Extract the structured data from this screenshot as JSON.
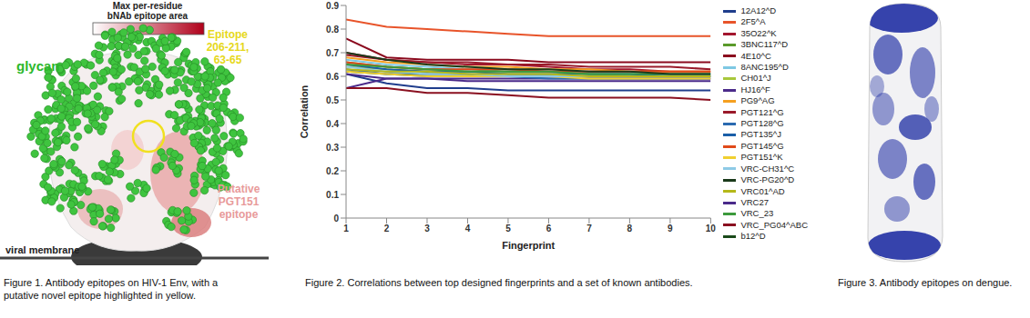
{
  "figure_1": {
    "colorbar_title": [
      "Max per-residue",
      "bNAb epitope area"
    ],
    "glycan_label": "glycan",
    "epitope_label": [
      "Epitope",
      "206-211,",
      "63-65"
    ],
    "putative_label": [
      "Putative",
      "PGT151",
      "epitope"
    ],
    "membrane_label": "viral membrane",
    "caption": [
      "Figure 1. Antibody epitopes on HIV-1 Env, with a",
      "putative novel epitope highlighted in yellow."
    ]
  },
  "chart_data": {
    "type": "line",
    "x_label": "Fingerprint",
    "y_label": "Correlation",
    "x": [
      1,
      2,
      3,
      4,
      5,
      6,
      7,
      8,
      9,
      10
    ],
    "xlim": [
      1,
      10
    ],
    "xticks": [
      1,
      2,
      3,
      4,
      5,
      6,
      7,
      8,
      9,
      10
    ],
    "ylim": [
      0,
      0.9
    ],
    "yticks": [
      0,
      0.1,
      0.2,
      0.3,
      0.4,
      0.5,
      0.6,
      0.7,
      0.8,
      0.9
    ],
    "grid": false,
    "legend": "right",
    "series": [
      {
        "name": "12A12^D",
        "color": "#1f3d8c",
        "values": [
          0.61,
          0.57,
          0.55,
          0.55,
          0.54,
          0.54,
          0.54,
          0.54,
          0.54,
          0.54
        ]
      },
      {
        "name": "2F5^A",
        "color": "#e8542a",
        "values": [
          0.84,
          0.81,
          0.8,
          0.79,
          0.78,
          0.77,
          0.77,
          0.77,
          0.77,
          0.77
        ]
      },
      {
        "name": "35O22^K",
        "color": "#a3162e",
        "values": [
          0.7,
          0.67,
          0.66,
          0.65,
          0.65,
          0.64,
          0.63,
          0.63,
          0.62,
          0.62
        ]
      },
      {
        "name": "3BNC117^D",
        "color": "#5a9a2a",
        "values": [
          0.66,
          0.64,
          0.63,
          0.63,
          0.62,
          0.62,
          0.61,
          0.61,
          0.61,
          0.61
        ]
      },
      {
        "name": "4E10^C",
        "color": "#8b0a1e",
        "values": [
          0.76,
          0.68,
          0.67,
          0.67,
          0.67,
          0.66,
          0.66,
          0.66,
          0.66,
          0.66
        ]
      },
      {
        "name": "8ANC195^D",
        "color": "#7ec8e3",
        "values": [
          0.67,
          0.65,
          0.64,
          0.63,
          0.63,
          0.62,
          0.62,
          0.61,
          0.61,
          0.61
        ]
      },
      {
        "name": "b12^D",
        "color": "#1a4a1a",
        "values": [
          0.62,
          0.61,
          0.61,
          0.61,
          0.6,
          0.6,
          0.6,
          0.6,
          0.6,
          0.6
        ]
      },
      {
        "name": "CH01^J",
        "color": "#a8c83c",
        "values": [
          0.64,
          0.63,
          0.62,
          0.62,
          0.61,
          0.61,
          0.61,
          0.6,
          0.6,
          0.6
        ]
      },
      {
        "name": "HJ16^F",
        "color": "#4b2a8a",
        "values": [
          0.55,
          0.59,
          0.59,
          0.59,
          0.59,
          0.59,
          0.59,
          0.59,
          0.59,
          0.59
        ]
      },
      {
        "name": "PG9^AG",
        "color": "#f5a020",
        "values": [
          0.68,
          0.66,
          0.65,
          0.64,
          0.64,
          0.63,
          0.63,
          0.62,
          0.62,
          0.62
        ]
      },
      {
        "name": "PGT121^G",
        "color": "#9a1a2a",
        "values": [
          0.69,
          0.67,
          0.66,
          0.66,
          0.65,
          0.65,
          0.64,
          0.64,
          0.64,
          0.63
        ]
      },
      {
        "name": "PGT128^G",
        "color": "#2a6ab0",
        "values": [
          0.63,
          0.61,
          0.6,
          0.6,
          0.6,
          0.59,
          0.59,
          0.59,
          0.59,
          0.59
        ]
      },
      {
        "name": "PGT135^J",
        "color": "#1a5fa8",
        "values": [
          0.65,
          0.63,
          0.62,
          0.62,
          0.61,
          0.61,
          0.61,
          0.61,
          0.6,
          0.6
        ]
      },
      {
        "name": "PGT145^G",
        "color": "#e04a1a",
        "values": [
          0.66,
          0.64,
          0.63,
          0.63,
          0.63,
          0.62,
          0.62,
          0.62,
          0.62,
          0.62
        ]
      },
      {
        "name": "PGT151^K",
        "color": "#f0d030",
        "values": [
          0.62,
          0.61,
          0.6,
          0.6,
          0.6,
          0.6,
          0.59,
          0.59,
          0.59,
          0.59
        ]
      },
      {
        "name": "VRC_23",
        "color": "#3c9a3c",
        "values": [
          0.65,
          0.64,
          0.63,
          0.62,
          0.62,
          0.62,
          0.61,
          0.61,
          0.61,
          0.61
        ]
      },
      {
        "name": "VRC_PG04^ABC",
        "color": "#8a1020",
        "values": [
          0.55,
          0.55,
          0.53,
          0.53,
          0.52,
          0.51,
          0.51,
          0.51,
          0.51,
          0.5
        ]
      },
      {
        "name": "VRC-CH31^C",
        "color": "#8ecae6",
        "values": [
          0.64,
          0.62,
          0.61,
          0.61,
          0.6,
          0.6,
          0.6,
          0.6,
          0.6,
          0.6
        ]
      },
      {
        "name": "VRC-PG20^D",
        "color": "#1a3a1a",
        "values": [
          0.7,
          0.67,
          0.65,
          0.64,
          0.63,
          0.63,
          0.62,
          0.62,
          0.61,
          0.61
        ]
      },
      {
        "name": "VRC01^AD",
        "color": "#b5b81a",
        "values": [
          0.63,
          0.62,
          0.62,
          0.61,
          0.61,
          0.61,
          0.6,
          0.6,
          0.6,
          0.6
        ]
      },
      {
        "name": "VRC27",
        "color": "#4a2a8a",
        "values": [
          0.61,
          0.59,
          0.59,
          0.58,
          0.58,
          0.58,
          0.58,
          0.58,
          0.58,
          0.58
        ]
      }
    ]
  },
  "figure_2": {
    "caption": [
      "Figure 2. Correlations between top designed fingerprints and a set of known antibodies."
    ]
  },
  "figure_3": {
    "caption": [
      "Figure 3. Antibody epitopes on dengue."
    ]
  }
}
